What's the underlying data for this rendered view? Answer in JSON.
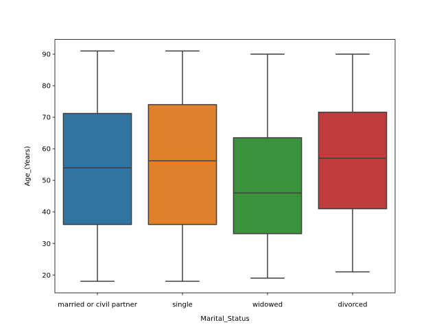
{
  "chart_data": {
    "type": "box",
    "title": "",
    "xlabel": "Marital_Status",
    "ylabel": "Age_(Years)",
    "ylim": [
      14.35,
      94.65
    ],
    "yticks": [
      20,
      30,
      40,
      50,
      60,
      70,
      80,
      90
    ],
    "grid": false,
    "categories": [
      "married or civil partner",
      "single",
      "widowed",
      "divorced"
    ],
    "boxes": [
      {
        "category": "married or civil partner",
        "whisker_low": 18,
        "q1": 36,
        "median": 54,
        "q3": 71.2,
        "whisker_high": 91,
        "color": "#3274a1"
      },
      {
        "category": "single",
        "whisker_low": 18,
        "q1": 36,
        "median": 56.2,
        "q3": 74,
        "whisker_high": 91,
        "color": "#e1812c"
      },
      {
        "category": "widowed",
        "whisker_low": 19,
        "q1": 33.1,
        "median": 46,
        "q3": 63.5,
        "whisker_high": 90,
        "color": "#3a923a"
      },
      {
        "category": "divorced",
        "whisker_low": 21,
        "q1": 41,
        "median": 57,
        "q3": 71.6,
        "whisker_high": 90,
        "color": "#c03d3e"
      }
    ]
  }
}
